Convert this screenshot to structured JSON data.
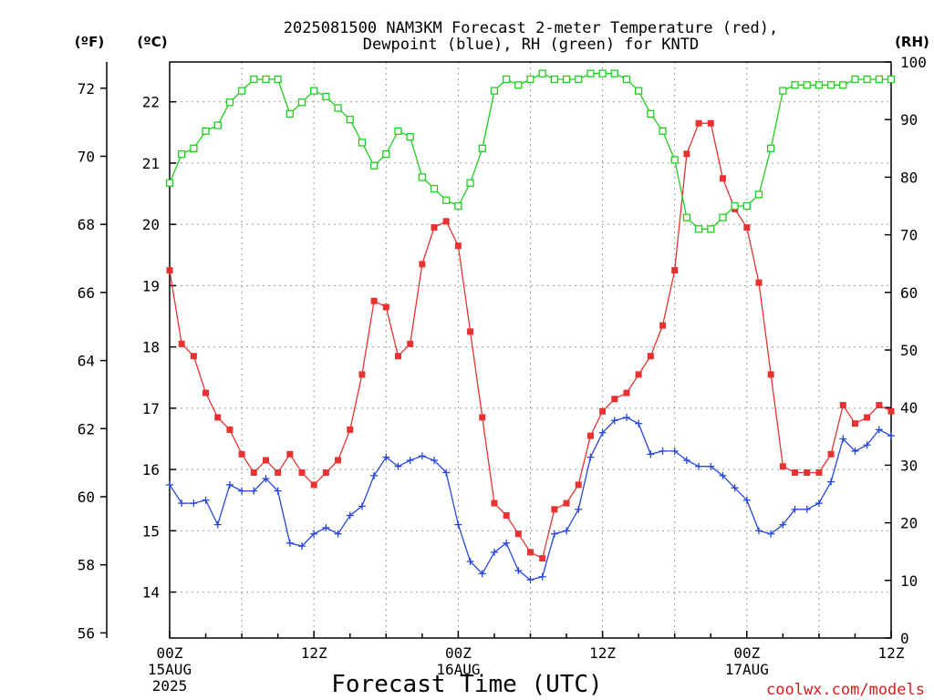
{
  "header": {
    "title_line1": "2025081500 NAM3KM Forecast 2-meter Temperature (red),",
    "title_line2": "Dewpoint (blue), RH (green) for KNTD",
    "unit_f": "(ºF)",
    "unit_c": "(ºC)",
    "unit_rh": "(RH)"
  },
  "xaxis": {
    "title": "Forecast Time (UTC)",
    "ticks": [
      {
        "h": 0,
        "time": "00Z",
        "date": "15AUG",
        "year": "2025"
      },
      {
        "h": 12,
        "time": "12Z",
        "date": "",
        "year": ""
      },
      {
        "h": 24,
        "time": "00Z",
        "date": "16AUG",
        "year": ""
      },
      {
        "h": 36,
        "time": "12Z",
        "date": "",
        "year": ""
      },
      {
        "h": 48,
        "time": "00Z",
        "date": "17AUG",
        "year": ""
      },
      {
        "h": 60,
        "time": "12Z",
        "date": "",
        "year": ""
      }
    ]
  },
  "credit": "coolwx.com/models",
  "colors": {
    "temperature": "#e83232",
    "dewpoint": "#2846dc",
    "rh": "#1ecf1e",
    "credit": "#d21e1e"
  },
  "chart_data": {
    "type": "line",
    "xlim_hours": [
      0,
      60
    ],
    "yaxis_f": {
      "ticks": [
        56,
        58,
        60,
        62,
        64,
        66,
        68,
        70,
        72
      ]
    },
    "yaxis_c": {
      "ticks": [
        14,
        15,
        16,
        17,
        18,
        19,
        20,
        21,
        22
      ],
      "ylim": [
        13.25,
        22.65
      ]
    },
    "yaxis_rh": {
      "ticks": [
        0,
        10,
        20,
        30,
        40,
        50,
        60,
        70,
        80,
        90,
        100
      ],
      "ylim": [
        0,
        100
      ]
    },
    "x": [
      0,
      1,
      2,
      3,
      4,
      5,
      6,
      7,
      8,
      9,
      10,
      11,
      12,
      13,
      14,
      15,
      16,
      17,
      18,
      19,
      20,
      21,
      22,
      23,
      24,
      25,
      26,
      27,
      28,
      29,
      30,
      31,
      32,
      33,
      34,
      35,
      36,
      37,
      38,
      39,
      40,
      41,
      42,
      43,
      44,
      45,
      46,
      47,
      48,
      49,
      50,
      51,
      52,
      53,
      54,
      55,
      56,
      57,
      58,
      59,
      60
    ],
    "series": [
      {
        "name": "Temperature",
        "unit": "C",
        "values": [
          19.25,
          18.05,
          17.85,
          17.25,
          16.85,
          16.65,
          16.25,
          15.95,
          16.15,
          15.95,
          16.25,
          15.95,
          15.75,
          15.95,
          16.15,
          16.65,
          17.55,
          18.75,
          18.65,
          17.85,
          18.05,
          19.35,
          19.95,
          20.05,
          19.65,
          18.25,
          16.85,
          15.45,
          15.25,
          14.95,
          14.65,
          14.55,
          15.35,
          15.45,
          15.75,
          16.55,
          16.95,
          17.15,
          17.25,
          17.55,
          17.85,
          18.35,
          19.25,
          21.15,
          21.65,
          21.65,
          20.75,
          20.25,
          19.95,
          19.05,
          17.55,
          16.05,
          15.95,
          15.95,
          15.95,
          16.25,
          17.05,
          16.75,
          16.85,
          17.05,
          16.95
        ]
      },
      {
        "name": "Dewpoint",
        "unit": "C",
        "values": [
          15.75,
          15.45,
          15.45,
          15.5,
          15.1,
          15.75,
          15.65,
          15.65,
          15.85,
          15.65,
          14.8,
          14.75,
          14.95,
          15.05,
          14.95,
          15.25,
          15.4,
          15.9,
          16.2,
          16.05,
          16.15,
          16.22,
          16.15,
          15.95,
          15.1,
          14.5,
          14.3,
          14.65,
          14.8,
          14.35,
          14.2,
          14.25,
          14.95,
          15.0,
          15.35,
          16.2,
          16.6,
          16.8,
          16.85,
          16.75,
          16.25,
          16.3,
          16.3,
          16.15,
          16.05,
          16.05,
          15.9,
          15.7,
          15.5,
          15.0,
          14.95,
          15.1,
          15.35,
          15.35,
          15.45,
          15.8,
          16.5,
          16.3,
          16.4,
          16.65,
          16.55
        ]
      },
      {
        "name": "RH",
        "unit": "%",
        "values": [
          79,
          84,
          85,
          88,
          89,
          93,
          95,
          97,
          97,
          97,
          91,
          93,
          95,
          94,
          92,
          90,
          86,
          82,
          84,
          88,
          87,
          80,
          78,
          76,
          75,
          79,
          85,
          95,
          97,
          96,
          97,
          98,
          97,
          97,
          97,
          98,
          98,
          98,
          97,
          95,
          91,
          88,
          83,
          73,
          71,
          71,
          73,
          75,
          75,
          77,
          85,
          95,
          96,
          96,
          96,
          96,
          96,
          97,
          97,
          97,
          97
        ]
      }
    ]
  }
}
